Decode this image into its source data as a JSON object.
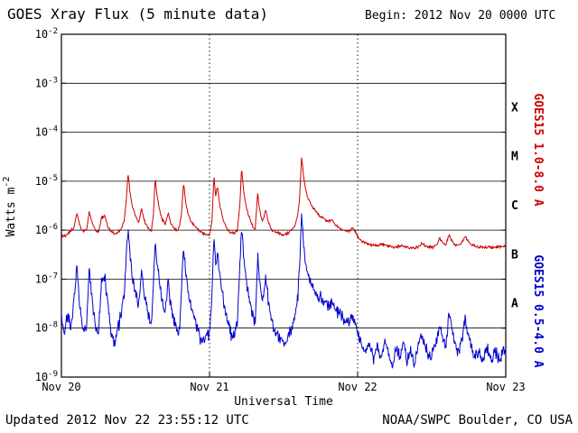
{
  "header": {
    "title": "GOES Xray Flux (5 minute data)",
    "begin_label": "Begin: 2012 Nov 20 0000 UTC"
  },
  "footer": {
    "updated": "Updated 2012 Nov 22 23:55:12 UTC",
    "source": "NOAA/SWPC Boulder, CO USA"
  },
  "chart_data": {
    "type": "line",
    "title": "GOES Xray Flux (5 minute data)",
    "xlabel": "Universal Time",
    "ylabel_base": "Watts m",
    "ylabel_exp": "-2",
    "begin": "2012 Nov 20 0000 UTC",
    "sample_minutes": 5,
    "x_unit": "hours since 2012 Nov 20 0000 UTC",
    "x_range": [
      0,
      72
    ],
    "y_range": [
      1e-09,
      0.01
    ],
    "y_tick_exponents": [
      -2,
      -3,
      -4,
      -5,
      -6,
      -7,
      -8,
      -9
    ],
    "x_ticks": [
      {
        "t": 0,
        "label": "Nov 20"
      },
      {
        "t": 24,
        "label": "Nov 21"
      },
      {
        "t": 48,
        "label": "Nov 22"
      },
      {
        "t": 72,
        "label": "Nov 23"
      }
    ],
    "grid": {
      "h_line_exponents": [
        -3,
        -4,
        -5,
        -6,
        -7,
        -8
      ],
      "v_dotted_t": [
        24,
        48
      ]
    },
    "flare_classes": [
      {
        "label": "X",
        "flux": 0.000316
      },
      {
        "label": "M",
        "flux": 3.16e-05
      },
      {
        "label": "C",
        "flux": 3.16e-06
      },
      {
        "label": "B",
        "flux": 3.16e-07
      },
      {
        "label": "A",
        "flux": 3.16e-08
      }
    ],
    "series": [
      {
        "id": "long",
        "name": "GOES15 1.0-8.0 A",
        "axis_label": "GOES15 1.0-8.0 A",
        "color": "#cc0000",
        "noise_log10": 0.035,
        "points": [
          [
            0,
            8e-07
          ],
          [
            0.7,
            7.5e-07
          ],
          [
            1.3,
            9e-07
          ],
          [
            2.0,
            1.1e-06
          ],
          [
            2.5,
            2.2e-06
          ],
          [
            3.0,
            1.2e-06
          ],
          [
            3.5,
            9.5e-07
          ],
          [
            4.1,
            1e-06
          ],
          [
            4.5,
            2.4e-06
          ],
          [
            5.0,
            1.4e-06
          ],
          [
            5.5,
            1e-06
          ],
          [
            6.0,
            9e-07
          ],
          [
            6.5,
            1.8e-06
          ],
          [
            7.0,
            2e-06
          ],
          [
            7.5,
            1.2e-06
          ],
          [
            8.0,
            9.5e-07
          ],
          [
            8.6,
            8.5e-07
          ],
          [
            9.2,
            9e-07
          ],
          [
            9.8,
            1.1e-06
          ],
          [
            10.2,
            1.6e-06
          ],
          [
            10.5,
            4e-06
          ],
          [
            10.8,
            1.5e-05
          ],
          [
            11.1,
            6e-06
          ],
          [
            11.5,
            3e-06
          ],
          [
            12.0,
            2e-06
          ],
          [
            12.5,
            1.4e-06
          ],
          [
            13.0,
            2.8e-06
          ],
          [
            13.4,
            1.6e-06
          ],
          [
            14.0,
            1.1e-06
          ],
          [
            14.6,
            1e-06
          ],
          [
            14.9,
            2e-06
          ],
          [
            15.2,
            1.2e-05
          ],
          [
            15.5,
            5e-06
          ],
          [
            15.9,
            2.6e-06
          ],
          [
            16.3,
            1.7e-06
          ],
          [
            16.8,
            1.3e-06
          ],
          [
            17.3,
            2.2e-06
          ],
          [
            17.7,
            1.4e-06
          ],
          [
            18.2,
            1.1e-06
          ],
          [
            18.8,
            1e-06
          ],
          [
            19.2,
            1.3e-06
          ],
          [
            19.5,
            2.5e-06
          ],
          [
            19.8,
            9.5e-06
          ],
          [
            20.1,
            4e-06
          ],
          [
            20.5,
            2.2e-06
          ],
          [
            21.0,
            1.5e-06
          ],
          [
            21.6,
            1.2e-06
          ],
          [
            22.2,
            1e-06
          ],
          [
            22.8,
            9e-07
          ],
          [
            23.4,
            8.5e-07
          ],
          [
            24.0,
            8e-07
          ],
          [
            24.4,
            1.5e-06
          ],
          [
            24.7,
            1.3e-05
          ],
          [
            25.0,
            5e-06
          ],
          [
            25.3,
            8e-06
          ],
          [
            25.7,
            3e-06
          ],
          [
            26.2,
            1.7e-06
          ],
          [
            26.8,
            1.1e-06
          ],
          [
            27.4,
            9e-07
          ],
          [
            28.0,
            8.5e-07
          ],
          [
            28.5,
            1e-06
          ],
          [
            28.9,
            3e-06
          ],
          [
            29.2,
            2e-05
          ],
          [
            29.5,
            7e-06
          ],
          [
            29.9,
            3.2e-06
          ],
          [
            30.4,
            1.9e-06
          ],
          [
            30.9,
            1.3e-06
          ],
          [
            31.4,
            1e-06
          ],
          [
            31.8,
            6e-06
          ],
          [
            32.1,
            2.6e-06
          ],
          [
            32.6,
            1.5e-06
          ],
          [
            33.1,
            2.6e-06
          ],
          [
            33.5,
            1.5e-06
          ],
          [
            34.1,
            1e-06
          ],
          [
            34.7,
            9e-07
          ],
          [
            35.3,
            8.5e-07
          ],
          [
            36.0,
            8e-07
          ],
          [
            36.6,
            8.5e-07
          ],
          [
            37.2,
            9.5e-07
          ],
          [
            37.8,
            1.2e-06
          ],
          [
            38.3,
            2e-06
          ],
          [
            38.6,
            4.5e-06
          ],
          [
            38.9,
            3.2e-05
          ],
          [
            39.2,
            1.4e-05
          ],
          [
            39.5,
            7.5e-06
          ],
          [
            39.9,
            4.8e-06
          ],
          [
            40.4,
            3.4e-06
          ],
          [
            40.9,
            2.7e-06
          ],
          [
            41.4,
            2.3e-06
          ],
          [
            42.0,
            1.9e-06
          ],
          [
            42.6,
            1.7e-06
          ],
          [
            43.2,
            1.5e-06
          ],
          [
            43.8,
            1.6e-06
          ],
          [
            44.4,
            1.3e-06
          ],
          [
            45.1,
            1.1e-06
          ],
          [
            45.9,
            1e-06
          ],
          [
            46.6,
            9.5e-07
          ],
          [
            47.3,
            1.1e-06
          ],
          [
            48.0,
            7.5e-07
          ],
          [
            48.6,
            6e-07
          ],
          [
            49.2,
            5.5e-07
          ],
          [
            50.0,
            5e-07
          ],
          [
            51.0,
            4.8e-07
          ],
          [
            52.0,
            5.2e-07
          ],
          [
            53.0,
            4.6e-07
          ],
          [
            54.0,
            4.4e-07
          ],
          [
            55.0,
            4.8e-07
          ],
          [
            56.0,
            4.5e-07
          ],
          [
            57.0,
            4.3e-07
          ],
          [
            58.0,
            4.6e-07
          ],
          [
            58.5,
            5.5e-07
          ],
          [
            59.0,
            4.8e-07
          ],
          [
            59.6,
            4.5e-07
          ],
          [
            60.2,
            4.4e-07
          ],
          [
            60.8,
            5.2e-07
          ],
          [
            61.3,
            6.8e-07
          ],
          [
            61.8,
            5.5e-07
          ],
          [
            62.3,
            5e-07
          ],
          [
            62.8,
            8e-07
          ],
          [
            63.3,
            6e-07
          ],
          [
            63.8,
            5e-07
          ],
          [
            64.4,
            4.8e-07
          ],
          [
            64.9,
            5.4e-07
          ],
          [
            65.4,
            7.5e-07
          ],
          [
            65.9,
            6e-07
          ],
          [
            66.4,
            5e-07
          ],
          [
            67.0,
            4.7e-07
          ],
          [
            67.6,
            4.5e-07
          ],
          [
            68.2,
            4.6e-07
          ],
          [
            68.9,
            4.4e-07
          ],
          [
            69.6,
            4.5e-07
          ],
          [
            70.3,
            4.4e-07
          ],
          [
            71.0,
            4.6e-07
          ],
          [
            71.6,
            4.5e-07
          ],
          [
            72.0,
            5e-07
          ]
        ]
      },
      {
        "id": "short",
        "name": "GOES15 0.5-4.0 A",
        "axis_label": "GOES15 0.5-4.0 A",
        "color": "#0000cc",
        "noise_log10": 0.16,
        "points": [
          [
            0,
            1.5e-08
          ],
          [
            0.5,
            8e-09
          ],
          [
            1.0,
            2e-08
          ],
          [
            1.5,
            1e-08
          ],
          [
            2.0,
            3e-08
          ],
          [
            2.5,
            2e-07
          ],
          [
            2.8,
            5e-08
          ],
          [
            3.2,
            1.5e-08
          ],
          [
            3.6,
            8e-09
          ],
          [
            4.1,
            1.2e-08
          ],
          [
            4.5,
            1.8e-07
          ],
          [
            4.8,
            6e-08
          ],
          [
            5.2,
            2e-08
          ],
          [
            5.6,
            1e-08
          ],
          [
            6.0,
            8e-09
          ],
          [
            6.5,
            9e-08
          ],
          [
            7.0,
            1.2e-07
          ],
          [
            7.4,
            4e-08
          ],
          [
            7.8,
            1.5e-08
          ],
          [
            8.2,
            7e-09
          ],
          [
            8.6,
            5e-09
          ],
          [
            9.2,
            1e-08
          ],
          [
            9.8,
            2.5e-08
          ],
          [
            10.2,
            5e-08
          ],
          [
            10.5,
            3e-07
          ],
          [
            10.8,
            1.1e-06
          ],
          [
            11.1,
            3e-07
          ],
          [
            11.5,
            1e-07
          ],
          [
            12.0,
            5e-08
          ],
          [
            12.5,
            2.5e-08
          ],
          [
            13.0,
            1.5e-07
          ],
          [
            13.4,
            5e-08
          ],
          [
            14.0,
            2e-08
          ],
          [
            14.6,
            1.2e-08
          ],
          [
            14.9,
            8e-08
          ],
          [
            15.2,
            8e-07
          ],
          [
            15.5,
            2e-07
          ],
          [
            15.9,
            8e-08
          ],
          [
            16.3,
            4e-08
          ],
          [
            16.8,
            2e-08
          ],
          [
            17.3,
            9e-08
          ],
          [
            17.7,
            3e-08
          ],
          [
            18.2,
            1.5e-08
          ],
          [
            18.8,
            8e-09
          ],
          [
            19.2,
            1.2e-08
          ],
          [
            19.5,
            8e-08
          ],
          [
            19.8,
            5e-07
          ],
          [
            20.1,
            1.5e-07
          ],
          [
            20.5,
            6e-08
          ],
          [
            21.0,
            3e-08
          ],
          [
            21.6,
            1.5e-08
          ],
          [
            22.2,
            8e-09
          ],
          [
            22.8,
            5e-09
          ],
          [
            23.4,
            7e-09
          ],
          [
            24.0,
            8e-09
          ],
          [
            24.4,
            5e-08
          ],
          [
            24.7,
            7e-07
          ],
          [
            25.0,
            2e-07
          ],
          [
            25.3,
            3.5e-07
          ],
          [
            25.7,
            1e-07
          ],
          [
            26.2,
            4e-08
          ],
          [
            26.8,
            1.5e-08
          ],
          [
            27.4,
            8e-09
          ],
          [
            28.0,
            7e-09
          ],
          [
            28.5,
            1.5e-08
          ],
          [
            28.9,
            1.5e-07
          ],
          [
            29.2,
            1.3e-06
          ],
          [
            29.5,
            3e-07
          ],
          [
            29.9,
            1e-07
          ],
          [
            30.4,
            4e-08
          ],
          [
            30.9,
            2e-08
          ],
          [
            31.4,
            1.2e-08
          ],
          [
            31.8,
            3e-07
          ],
          [
            32.1,
            8e-08
          ],
          [
            32.6,
            3e-08
          ],
          [
            33.1,
            1.2e-07
          ],
          [
            33.5,
            4e-08
          ],
          [
            34.1,
            1.5e-08
          ],
          [
            34.7,
            8e-09
          ],
          [
            35.3,
            6e-09
          ],
          [
            36.0,
            5e-09
          ],
          [
            36.6,
            6e-09
          ],
          [
            37.2,
            9e-09
          ],
          [
            37.8,
            1.5e-08
          ],
          [
            38.3,
            4e-08
          ],
          [
            38.6,
            2e-07
          ],
          [
            38.9,
            2.2e-06
          ],
          [
            39.2,
            6e-07
          ],
          [
            39.5,
            2.5e-07
          ],
          [
            39.9,
            1.3e-07
          ],
          [
            40.4,
            8e-08
          ],
          [
            40.9,
            6e-08
          ],
          [
            41.4,
            5e-08
          ],
          [
            42.0,
            4e-08
          ],
          [
            42.6,
            3.5e-08
          ],
          [
            43.2,
            3e-08
          ],
          [
            43.8,
            3.5e-08
          ],
          [
            44.4,
            2.5e-08
          ],
          [
            45.1,
            2e-08
          ],
          [
            45.9,
            1.5e-08
          ],
          [
            46.6,
            1.2e-08
          ],
          [
            47.3,
            1.8e-08
          ],
          [
            48.0,
            8e-09
          ],
          [
            48.6,
            5e-09
          ],
          [
            49.2,
            3.5e-09
          ],
          [
            50.0,
            5e-09
          ],
          [
            50.6,
            2.5e-09
          ],
          [
            51.2,
            4.5e-09
          ],
          [
            51.8,
            2e-09
          ],
          [
            52.4,
            6e-09
          ],
          [
            53.0,
            3e-09
          ],
          [
            53.6,
            1.6e-09
          ],
          [
            54.2,
            4e-09
          ],
          [
            54.8,
            2.5e-09
          ],
          [
            55.4,
            5e-09
          ],
          [
            56.0,
            2e-09
          ],
          [
            56.6,
            3.5e-09
          ],
          [
            57.2,
            1.8e-09
          ],
          [
            57.8,
            4e-09
          ],
          [
            58.4,
            7e-09
          ],
          [
            59.0,
            4e-09
          ],
          [
            59.6,
            2.5e-09
          ],
          [
            60.2,
            3e-09
          ],
          [
            60.8,
            6e-09
          ],
          [
            61.3,
            1.2e-08
          ],
          [
            61.8,
            6e-09
          ],
          [
            62.3,
            4e-09
          ],
          [
            62.8,
            2.5e-08
          ],
          [
            63.3,
            1e-08
          ],
          [
            63.8,
            5e-09
          ],
          [
            64.4,
            3e-09
          ],
          [
            64.9,
            6e-09
          ],
          [
            65.4,
            1.5e-08
          ],
          [
            65.9,
            7e-09
          ],
          [
            66.4,
            4e-09
          ],
          [
            67.0,
            2.5e-09
          ],
          [
            67.6,
            3.5e-09
          ],
          [
            68.2,
            2e-09
          ],
          [
            68.9,
            4e-09
          ],
          [
            69.6,
            2.2e-09
          ],
          [
            70.3,
            3.5e-09
          ],
          [
            71.0,
            2e-09
          ],
          [
            71.6,
            4e-09
          ],
          [
            72.0,
            3e-09
          ]
        ]
      }
    ]
  }
}
